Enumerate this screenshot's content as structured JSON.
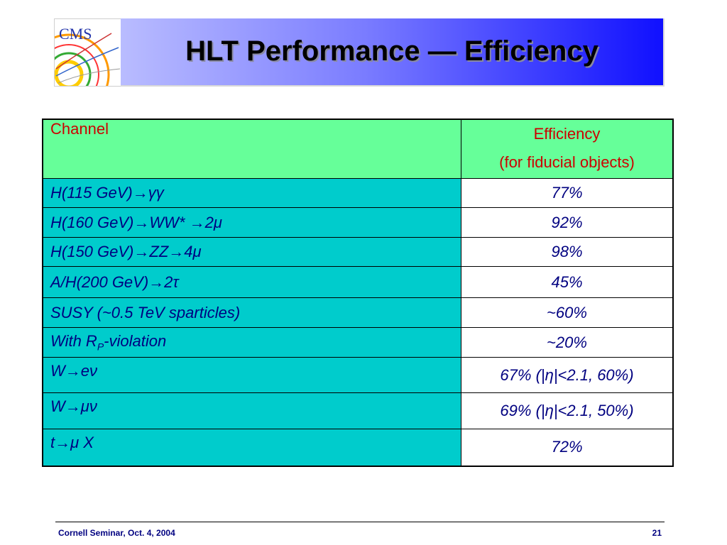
{
  "slide": {
    "title": "HLT Performance — Efficiency",
    "logo_text": "CMS"
  },
  "table": {
    "header": {
      "channel": "Channel",
      "efficiency_line1": "Efficiency",
      "efficiency_line2": "(for fiducial objects)"
    },
    "rows": [
      {
        "channel": "H(115 GeV)→γγ",
        "efficiency": "77%"
      },
      {
        "channel": "H(160 GeV)→WW* →2μ",
        "efficiency": "92%"
      },
      {
        "channel": "H(150 GeV)→ZZ→4μ",
        "efficiency": "98%"
      },
      {
        "channel": "A/H(200 GeV)→2τ",
        "efficiency": "45%"
      },
      {
        "channel": "SUSY (~0.5 TeV sparticles)",
        "efficiency": "~60%"
      },
      {
        "channel": "With R",
        "channel_sub": "P",
        "channel_suffix": "-violation",
        "efficiency": "~20%"
      },
      {
        "channel": "W→eν",
        "efficiency": "67% (|η|<2.1, 60%)"
      },
      {
        "channel": "W→μν",
        "efficiency": "69% (|η|<2.1, 50%)"
      },
      {
        "channel": "t→μ X",
        "efficiency": "72%"
      }
    ]
  },
  "footer": {
    "left": "Cornell Seminar, Oct. 4, 2004",
    "page_number": "21"
  },
  "colors": {
    "header_bg": "#66ff99",
    "channel_bg": "#00cccc",
    "text_navy": "#000080",
    "header_text": "#cc0000"
  }
}
